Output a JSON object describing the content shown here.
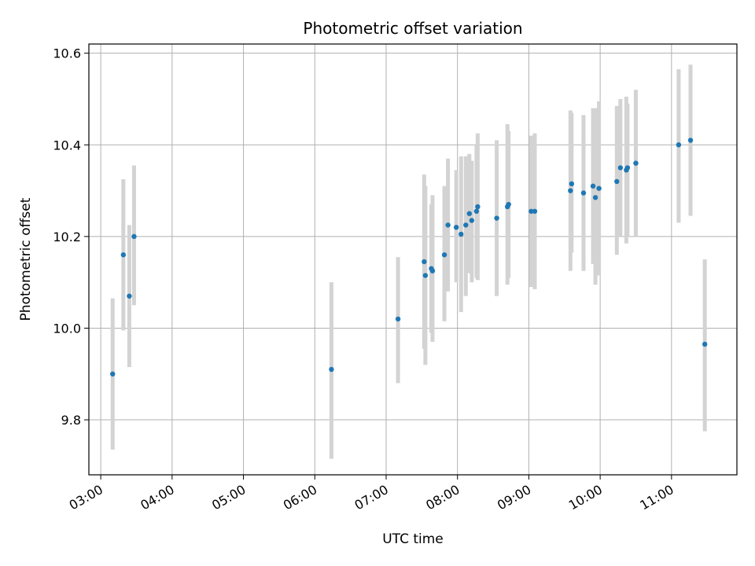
{
  "chart_data": {
    "type": "scatter",
    "title": "Photometric offset variation",
    "xlabel": "UTC time",
    "ylabel": "Photometric offset",
    "x_ticks": [
      "03:00",
      "04:00",
      "05:00",
      "06:00",
      "07:00",
      "08:00",
      "09:00",
      "10:00",
      "11:00"
    ],
    "y_ticks": [
      "9.8",
      "10.0",
      "10.2",
      "10.4",
      "10.6"
    ],
    "xlim": [
      "02:50",
      "11:55"
    ],
    "ylim": [
      9.68,
      10.62
    ],
    "grid": true,
    "marker_color": "#1f77b4",
    "errorbar_color": "#d3d3d3",
    "points": [
      {
        "t": "03:10",
        "y": 9.9,
        "lo": 9.735,
        "hi": 10.065
      },
      {
        "t": "03:19",
        "y": 10.16,
        "lo": 9.995,
        "hi": 10.325
      },
      {
        "t": "03:24",
        "y": 10.07,
        "lo": 9.915,
        "hi": 10.225
      },
      {
        "t": "03:28",
        "y": 10.2,
        "lo": 10.05,
        "hi": 10.355
      },
      {
        "t": "06:14",
        "y": 9.91,
        "lo": 9.715,
        "hi": 10.1
      },
      {
        "t": "07:10",
        "y": 10.02,
        "lo": 9.88,
        "hi": 10.155
      },
      {
        "t": "07:32",
        "y": 10.145,
        "lo": 9.955,
        "hi": 10.335
      },
      {
        "t": "07:33",
        "y": 10.115,
        "lo": 9.92,
        "hi": 10.31
      },
      {
        "t": "07:38",
        "y": 10.13,
        "lo": 9.99,
        "hi": 10.27
      },
      {
        "t": "07:39",
        "y": 10.125,
        "lo": 9.97,
        "hi": 10.29
      },
      {
        "t": "07:49",
        "y": 10.16,
        "lo": 10.015,
        "hi": 10.31
      },
      {
        "t": "07:52",
        "y": 10.225,
        "lo": 10.08,
        "hi": 10.37
      },
      {
        "t": "07:59",
        "y": 10.22,
        "lo": 10.1,
        "hi": 10.345
      },
      {
        "t": "08:03",
        "y": 10.205,
        "lo": 10.035,
        "hi": 10.375
      },
      {
        "t": "08:07",
        "y": 10.225,
        "lo": 10.07,
        "hi": 10.375
      },
      {
        "t": "08:10",
        "y": 10.25,
        "lo": 10.12,
        "hi": 10.38
      },
      {
        "t": "08:12",
        "y": 10.235,
        "lo": 10.1,
        "hi": 10.365
      },
      {
        "t": "08:16",
        "y": 10.255,
        "lo": 10.11,
        "hi": 10.4
      },
      {
        "t": "08:17",
        "y": 10.265,
        "lo": 10.105,
        "hi": 10.425
      },
      {
        "t": "08:33",
        "y": 10.24,
        "lo": 10.07,
        "hi": 10.41
      },
      {
        "t": "08:42",
        "y": 10.265,
        "lo": 10.095,
        "hi": 10.445
      },
      {
        "t": "08:43",
        "y": 10.27,
        "lo": 10.11,
        "hi": 10.43
      },
      {
        "t": "09:02",
        "y": 10.255,
        "lo": 10.09,
        "hi": 10.42
      },
      {
        "t": "09:05",
        "y": 10.255,
        "lo": 10.085,
        "hi": 10.425
      },
      {
        "t": "09:35",
        "y": 10.3,
        "lo": 10.125,
        "hi": 10.475
      },
      {
        "t": "09:36",
        "y": 10.315,
        "lo": 10.165,
        "hi": 10.47
      },
      {
        "t": "09:46",
        "y": 10.295,
        "lo": 10.125,
        "hi": 10.465
      },
      {
        "t": "09:54",
        "y": 10.31,
        "lo": 10.14,
        "hi": 10.48
      },
      {
        "t": "09:56",
        "y": 10.285,
        "lo": 10.095,
        "hi": 10.48
      },
      {
        "t": "09:59",
        "y": 10.305,
        "lo": 10.115,
        "hi": 10.495
      },
      {
        "t": "10:14",
        "y": 10.32,
        "lo": 10.16,
        "hi": 10.485
      },
      {
        "t": "10:17",
        "y": 10.35,
        "lo": 10.2,
        "hi": 10.5
      },
      {
        "t": "10:22",
        "y": 10.345,
        "lo": 10.185,
        "hi": 10.505
      },
      {
        "t": "10:23",
        "y": 10.35,
        "lo": 10.2,
        "hi": 10.49
      },
      {
        "t": "10:30",
        "y": 10.36,
        "lo": 10.2,
        "hi": 10.52
      },
      {
        "t": "11:06",
        "y": 10.4,
        "lo": 10.23,
        "hi": 10.565
      },
      {
        "t": "11:16",
        "y": 10.41,
        "lo": 10.245,
        "hi": 10.575
      },
      {
        "t": "11:28",
        "y": 9.965,
        "lo": 9.775,
        "hi": 10.15
      }
    ]
  }
}
